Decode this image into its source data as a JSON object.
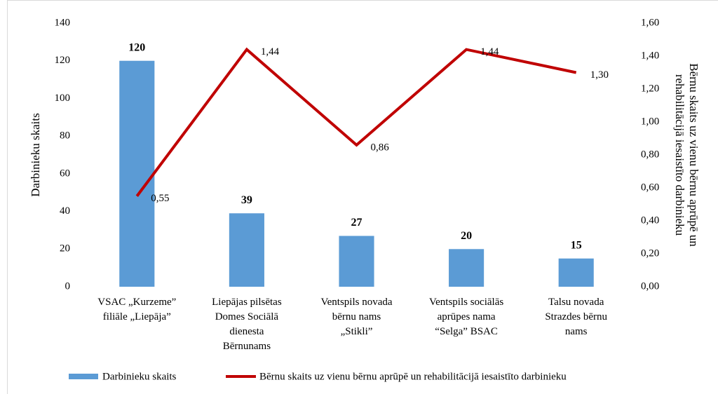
{
  "chart_data": {
    "type": "bar",
    "categories": [
      [
        "VSAC „Kurzeme”",
        "filiāle  „Liepāja”"
      ],
      [
        "Liepājas pilsētas",
        "Domes Sociālā",
        "dienesta",
        "Bērnunams"
      ],
      [
        "Ventspils  novada",
        "bērnu nams",
        "„Stikli”"
      ],
      [
        "Ventspils  sociālās",
        "aprūpes nama",
        "“Selga” BSAC"
      ],
      [
        "Talsu novada",
        "Strazdes bērnu",
        "nams"
      ]
    ],
    "series": [
      {
        "name": "Darbinieku skaits",
        "type": "bar",
        "color": "#5b9bd5",
        "values": [
          120,
          39,
          27,
          20,
          15
        ]
      },
      {
        "name": "Bērnu skaits uz vienu bērnu aprūpē un rehabilitācijā iesaistīto darbinieku",
        "type": "line",
        "axis": "y2",
        "color": "#c00000",
        "values": [
          0.55,
          1.44,
          0.86,
          1.44,
          1.3
        ],
        "value_labels": [
          "0,55",
          "1,44",
          "0,86",
          "1,44",
          "1,30"
        ]
      }
    ],
    "ylabel": "Darbinieku skaits",
    "y2label": [
      "Bērnu skaits uz vienu bērnu aprūpē un",
      "rehabilitācijā iesaistīto darbinieku"
    ],
    "ylim": [
      0,
      140
    ],
    "yticks": [
      0,
      20,
      40,
      60,
      80,
      100,
      120,
      140
    ],
    "y2lim": [
      0,
      1.6
    ],
    "y2ticks": [
      {
        "value": 0,
        "label": "0,00"
      },
      {
        "value": 0.2,
        "label": "0,20"
      },
      {
        "value": 0.4,
        "label": "0,40"
      },
      {
        "value": 0.6,
        "label": "0,60"
      },
      {
        "value": 0.8,
        "label": "0,80"
      },
      {
        "value": 1.0,
        "label": "1,00"
      },
      {
        "value": 1.2,
        "label": "1,20"
      },
      {
        "value": 1.4,
        "label": "1,40"
      },
      {
        "value": 1.6,
        "label": "1,60"
      }
    ],
    "grid": false,
    "legend": "bottom"
  }
}
